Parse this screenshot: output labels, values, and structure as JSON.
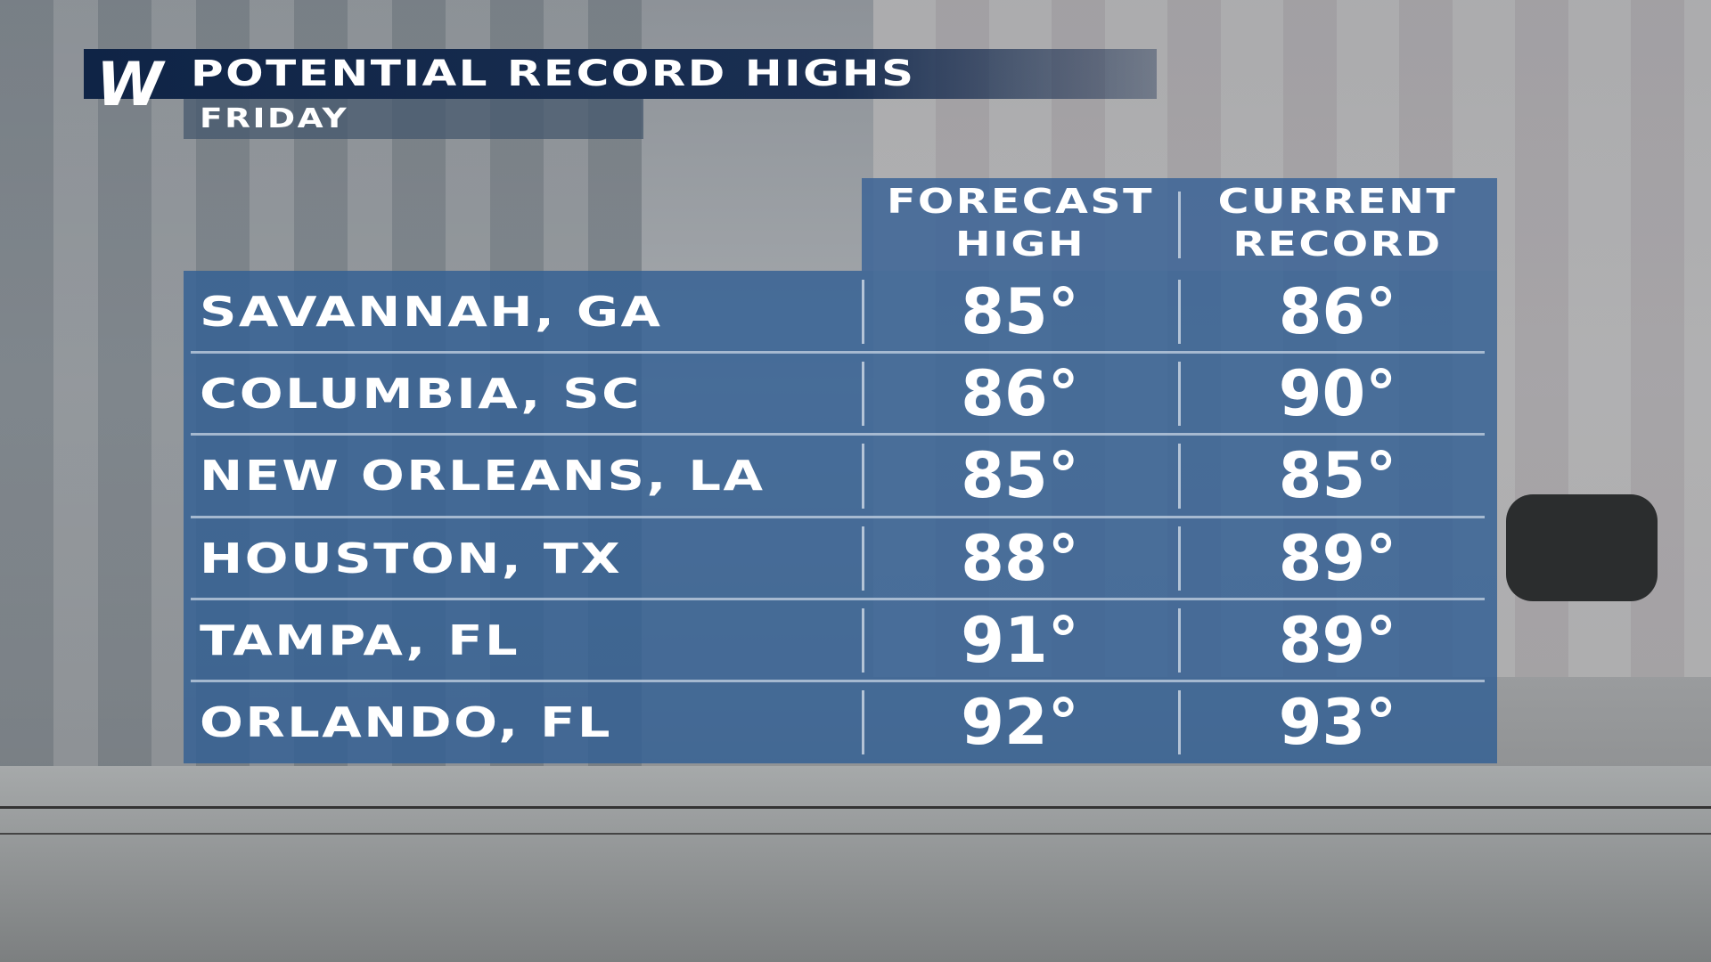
{
  "header": {
    "logo": "W",
    "title": "POTENTIAL RECORD HIGHS",
    "subtitle": "FRIDAY"
  },
  "table": {
    "columns": [
      "FORECAST HIGH",
      "CURRENT RECORD"
    ],
    "rows": [
      [
        "SAVANNAH, GA",
        "85°",
        "86°"
      ],
      [
        "COLUMBIA, SC",
        "86°",
        "90°"
      ],
      [
        "NEW ORLEANS, LA",
        "85°",
        "85°"
      ],
      [
        "HOUSTON, TX",
        "88°",
        "89°"
      ],
      [
        "TAMPA, FL",
        "91°",
        "89°"
      ],
      [
        "ORLANDO, FL",
        "92°",
        "93°"
      ]
    ]
  }
}
